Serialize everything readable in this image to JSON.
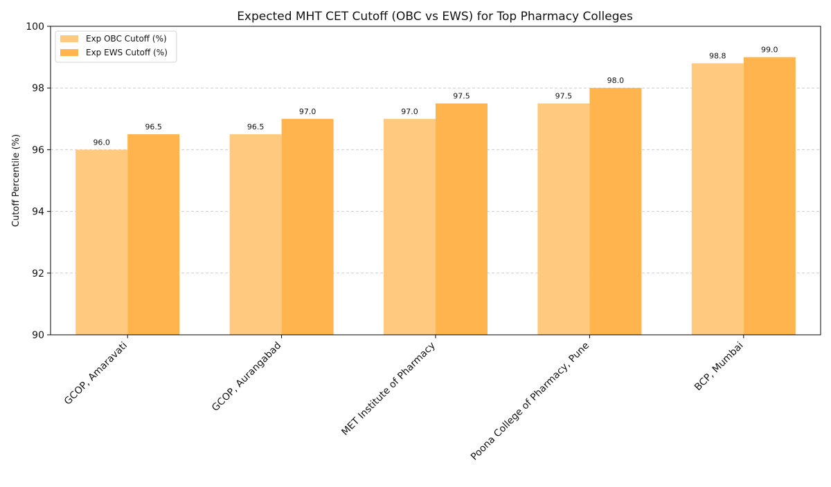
{
  "chart_data": {
    "type": "bar",
    "title": "Expected MHT CET Cutoff (OBC vs EWS) for Top Pharmacy Colleges",
    "xlabel": "",
    "ylabel": "Cutoff Percentile (%)",
    "ylim": [
      90,
      100
    ],
    "yticks": [
      "90",
      "92",
      "94",
      "96",
      "98",
      "100"
    ],
    "grid": true,
    "legend_position": "top-left",
    "categories": [
      "GCOP, Amaravati",
      "GCOP, Aurangabad",
      "MET Institute of Pharmacy",
      "Poona College of Pharmacy, Pune",
      "BCP, Mumbai"
    ],
    "series": [
      {
        "name": "Exp OBC Cutoff (%)",
        "color": "#FFC980",
        "values": [
          96.0,
          96.5,
          97.0,
          97.5,
          98.8
        ],
        "labels": [
          "96.0",
          "96.5",
          "97.0",
          "97.5",
          "98.8"
        ]
      },
      {
        "name": "Exp EWS Cutoff (%)",
        "color": "#FFB44D",
        "values": [
          96.5,
          97.0,
          97.5,
          98.0,
          99.0
        ],
        "labels": [
          "96.5",
          "97.0",
          "97.5",
          "98.0",
          "99.0"
        ]
      }
    ]
  }
}
